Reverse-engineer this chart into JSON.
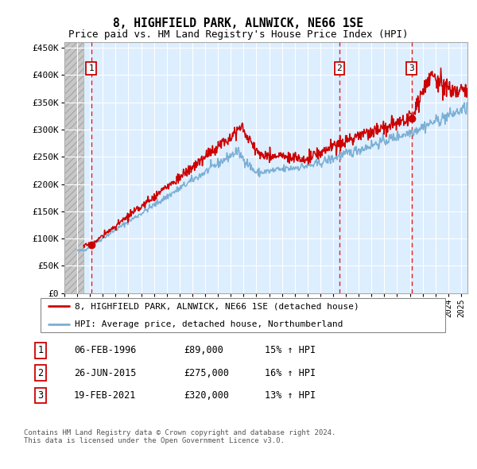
{
  "title": "8, HIGHFIELD PARK, ALNWICK, NE66 1SE",
  "subtitle": "Price paid vs. HM Land Registry's House Price Index (HPI)",
  "ylim": [
    0,
    460000
  ],
  "yticks": [
    0,
    50000,
    100000,
    150000,
    200000,
    250000,
    300000,
    350000,
    400000,
    450000
  ],
  "ytick_labels": [
    "£0",
    "£50K",
    "£100K",
    "£150K",
    "£200K",
    "£250K",
    "£300K",
    "£350K",
    "£400K",
    "£450K"
  ],
  "xlim_start": 1994.0,
  "xlim_end": 2025.5,
  "hatch_end": 1995.5,
  "purchases": [
    {
      "year": 1996.09,
      "price": 89000,
      "label": "1"
    },
    {
      "year": 2015.49,
      "price": 275000,
      "label": "2"
    },
    {
      "year": 2021.12,
      "price": 320000,
      "label": "3"
    }
  ],
  "legend_line1": "8, HIGHFIELD PARK, ALNWICK, NE66 1SE (detached house)",
  "legend_line2": "HPI: Average price, detached house, Northumberland",
  "table_rows": [
    [
      "1",
      "06-FEB-1996",
      "£89,000",
      "15% ↑ HPI"
    ],
    [
      "2",
      "26-JUN-2015",
      "£275,000",
      "16% ↑ HPI"
    ],
    [
      "3",
      "19-FEB-2021",
      "£320,000",
      "13% ↑ HPI"
    ]
  ],
  "footer": "Contains HM Land Registry data © Crown copyright and database right 2024.\nThis data is licensed under the Open Government Licence v3.0.",
  "line_color_red": "#cc0000",
  "line_color_blue": "#7bafd4",
  "bg_plot": "#ddeeff",
  "grid_color": "#ffffff",
  "dashed_line_color": "#dd0000"
}
